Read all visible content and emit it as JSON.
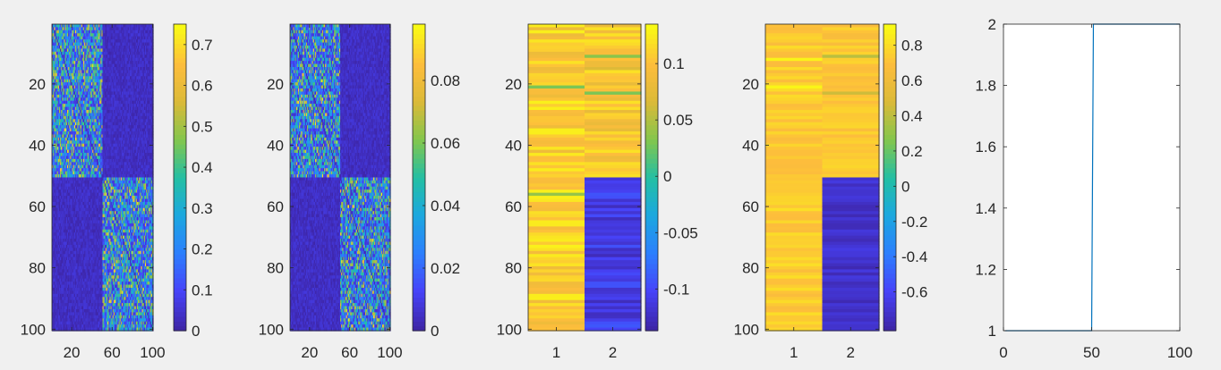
{
  "figure": {
    "background": "#f0f0f0"
  },
  "colormap": [
    "#3e26a8",
    "#4743f9",
    "#2c7ffe",
    "#1ca8df",
    "#24bfa3",
    "#83c64d",
    "#dbba38",
    "#fdbd3c",
    "#f9fa14"
  ],
  "chart_data": [
    {
      "type": "heatmap",
      "title": "",
      "rows": 100,
      "cols": 100,
      "xlim": [
        0.5,
        100.5
      ],
      "ylim": [
        0.5,
        100.5
      ],
      "xticks": [
        20,
        60,
        100
      ],
      "yticks": [
        20,
        40,
        60,
        80,
        100
      ],
      "y_reversed": true,
      "structure": "two-block: rows 1-50 active in cols 1-50, rows 51-100 active in cols 51-100",
      "block_range": [
        0.05,
        0.55
      ],
      "background_range": [
        0.0,
        0.06
      ],
      "clim": [
        0,
        0.75
      ],
      "colorbar_ticks": [
        "0",
        "0.1",
        "0.2",
        "0.3",
        "0.4",
        "0.5",
        "0.6",
        "0.7"
      ],
      "colorbar_values": [
        0,
        0.1,
        0.2,
        0.3,
        0.4,
        0.5,
        0.6,
        0.7
      ]
    },
    {
      "type": "heatmap",
      "title": "",
      "rows": 100,
      "cols": 100,
      "xlim": [
        0.5,
        100.5
      ],
      "ylim": [
        0.5,
        100.5
      ],
      "xticks": [
        20,
        60,
        100
      ],
      "yticks": [
        20,
        40,
        60,
        80,
        100
      ],
      "y_reversed": true,
      "structure": "two-block: rows 1-50 active in cols 1-50, rows 51-100 active in cols 51-100",
      "block_range": [
        0.005,
        0.07
      ],
      "background_range": [
        0.0,
        0.008
      ],
      "clim": [
        0,
        0.098
      ],
      "colorbar_ticks": [
        "0",
        "0.02",
        "0.04",
        "0.06",
        "0.08"
      ],
      "colorbar_values": [
        0,
        0.02,
        0.04,
        0.06,
        0.08
      ]
    },
    {
      "type": "heatmap",
      "title": "",
      "rows": 100,
      "cols": 2,
      "xlim": [
        0.5,
        2.5
      ],
      "ylim": [
        0.5,
        100.5
      ],
      "xticks": [
        1,
        2
      ],
      "yticks": [
        20,
        40,
        60,
        80,
        100
      ],
      "y_reversed": true,
      "column_ranges": {
        "col1": [
          0.085,
          0.13
        ],
        "col2_rows_1_50": [
          0.08,
          0.125
        ],
        "col2_rows_51_100": [
          -0.13,
          -0.09
        ]
      },
      "highlight_rows": [
        {
          "col": 1,
          "row": 21,
          "value": 0.03
        },
        {
          "col": 1,
          "row": 56,
          "value": 0.04
        },
        {
          "col": 2,
          "row": 11,
          "value": 0.035
        },
        {
          "col": 2,
          "row": 23,
          "value": 0.03
        },
        {
          "col": 2,
          "row": 15,
          "value": 0.07
        }
      ],
      "clim": [
        -0.137,
        0.135
      ],
      "colorbar_ticks": [
        "-0.1",
        "-0.05",
        "0",
        "0.05",
        "0.1"
      ],
      "colorbar_values": [
        -0.1,
        -0.05,
        0,
        0.05,
        0.1
      ]
    },
    {
      "type": "heatmap",
      "title": "",
      "rows": 100,
      "cols": 2,
      "xlim": [
        0.5,
        2.5
      ],
      "ylim": [
        0.5,
        100.5
      ],
      "xticks": [
        1,
        2
      ],
      "yticks": [
        20,
        40,
        60,
        80,
        100
      ],
      "y_reversed": true,
      "column_ranges": {
        "col1": [
          0.68,
          0.82
        ],
        "col2_rows_1_50": [
          0.66,
          0.8
        ],
        "col2_rows_51_100": [
          -0.8,
          -0.66
        ]
      },
      "highlight_rows": [
        {
          "col": 1,
          "row": 12,
          "value": 0.9
        },
        {
          "col": 1,
          "row": 21,
          "value": 0.9
        },
        {
          "col": 2,
          "row": 11,
          "value": 0.4
        },
        {
          "col": 2,
          "row": 23,
          "value": 0.45
        }
      ],
      "clim": [
        -0.82,
        0.92
      ],
      "colorbar_ticks": [
        "-0.6",
        "-0.4",
        "-0.2",
        "0",
        "0.2",
        "0.4",
        "0.6",
        "0.8"
      ],
      "colorbar_values": [
        -0.6,
        -0.4,
        -0.2,
        0,
        0.2,
        0.4,
        0.6,
        0.8
      ]
    },
    {
      "type": "line",
      "title": "",
      "xlim": [
        0,
        100
      ],
      "ylim": [
        1,
        2
      ],
      "xticks": [
        "0",
        "50",
        "100"
      ],
      "xtick_values": [
        0,
        50,
        100
      ],
      "yticks": [
        "1",
        "1.2",
        "1.4",
        "1.6",
        "1.8",
        "2"
      ],
      "ytick_values": [
        1,
        1.2,
        1.4,
        1.6,
        1.8,
        2
      ],
      "series": [
        {
          "x": [
            1,
            50,
            51,
            100
          ],
          "y": [
            1,
            1,
            2,
            2
          ],
          "color": "#0072bd"
        }
      ]
    }
  ]
}
